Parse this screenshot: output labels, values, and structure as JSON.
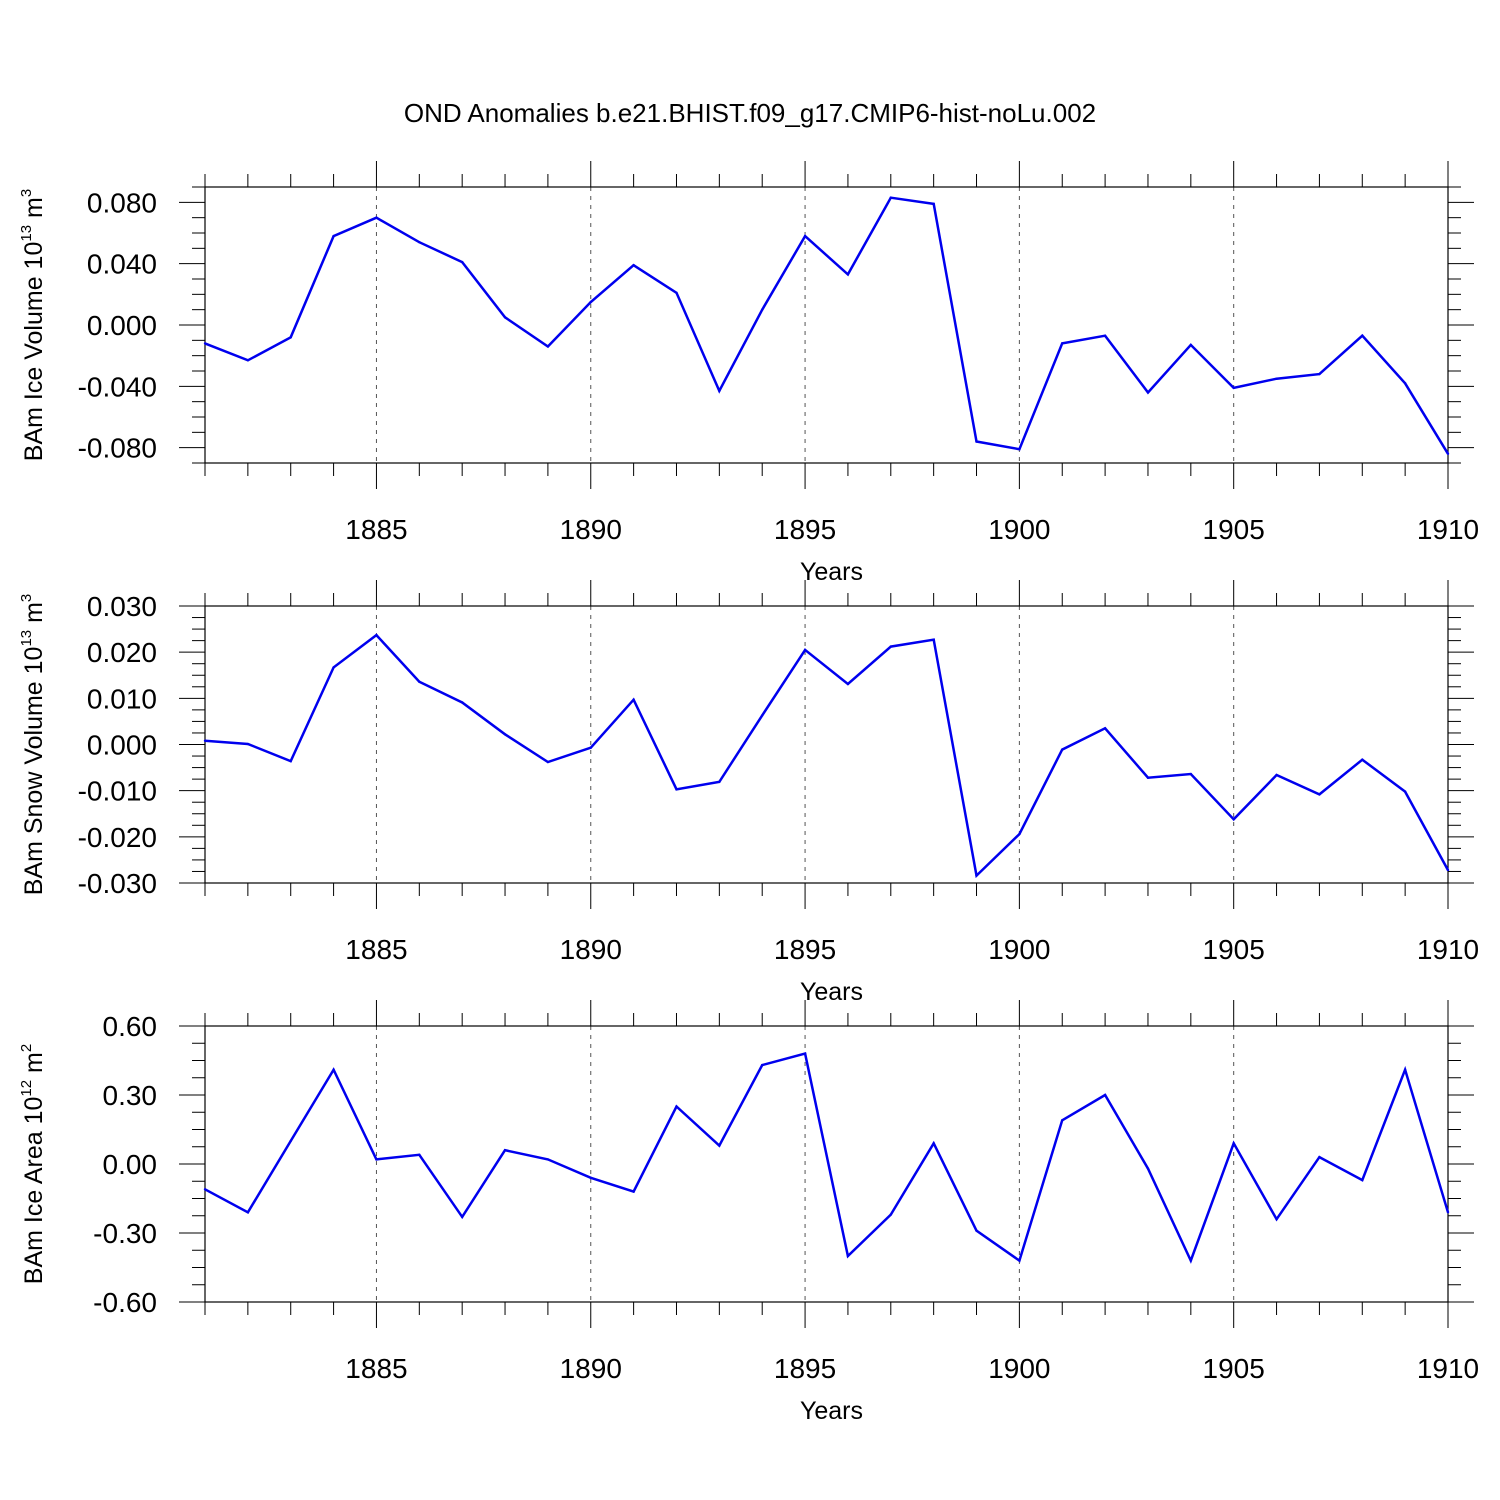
{
  "figure": {
    "title": "OND Anomalies b.e21.BHIST.f09_g17.CMIP6-hist-noLu.002"
  },
  "colors": {
    "line": "#0000ee",
    "axis": "#000000",
    "grid": "#555555"
  },
  "chart_data": [
    {
      "type": "line",
      "ylabel": "BAm Ice Volume 10",
      "ylabel_exp": "13",
      "ylabel_unit": "m",
      "ylabel_unit_exp": "3",
      "xlabel": "Years",
      "xlim": [
        1881,
        1910
      ],
      "ylim": [
        -0.09,
        0.09
      ],
      "yticks": [
        -0.08,
        -0.04,
        0.0,
        0.04,
        0.08
      ],
      "yticklabels": [
        "-0.080",
        "-0.040",
        "0.000",
        "0.040",
        "0.080"
      ],
      "yminor_step": 0.01,
      "xticks": [
        1885,
        1890,
        1895,
        1900,
        1905,
        1910
      ],
      "xticklabels": [
        "1885",
        "1890",
        "1895",
        "1900",
        "1905",
        "1910"
      ],
      "grid": "vertical-dashed-at-major-x",
      "x": [
        1881,
        1882,
        1883,
        1884,
        1885,
        1886,
        1887,
        1888,
        1889,
        1890,
        1891,
        1892,
        1893,
        1894,
        1895,
        1896,
        1897,
        1898,
        1899,
        1900,
        1901,
        1902,
        1903,
        1904,
        1905,
        1906,
        1907,
        1908,
        1909,
        1910
      ],
      "values": [
        -0.012,
        -0.023,
        -0.008,
        0.058,
        0.07,
        0.054,
        0.041,
        0.005,
        -0.014,
        0.015,
        0.039,
        0.021,
        -0.043,
        0.01,
        0.058,
        0.033,
        0.083,
        0.079,
        -0.076,
        -0.081,
        -0.012,
        -0.007,
        -0.044,
        -0.013,
        -0.041,
        -0.035,
        -0.032,
        -0.007,
        -0.038,
        -0.084
      ]
    },
    {
      "type": "line",
      "ylabel": "BAm Snow Volume 10",
      "ylabel_exp": "13",
      "ylabel_unit": "m",
      "ylabel_unit_exp": "3",
      "xlabel": "Years",
      "xlim": [
        1881,
        1910
      ],
      "ylim": [
        -0.03,
        0.03
      ],
      "yticks": [
        -0.03,
        -0.02,
        -0.01,
        0.0,
        0.01,
        0.02,
        0.03
      ],
      "yticklabels": [
        "-0.030",
        "-0.020",
        "-0.010",
        "0.000",
        "0.010",
        "0.020",
        "0.030"
      ],
      "yminor_step": 0.0025,
      "xticks": [
        1885,
        1890,
        1895,
        1900,
        1905,
        1910
      ],
      "xticklabels": [
        "1885",
        "1890",
        "1895",
        "1900",
        "1905",
        "1910"
      ],
      "grid": "vertical-dashed-at-major-x",
      "x": [
        1881,
        1882,
        1883,
        1884,
        1885,
        1886,
        1887,
        1888,
        1889,
        1890,
        1891,
        1892,
        1893,
        1894,
        1895,
        1896,
        1897,
        1898,
        1899,
        1900,
        1901,
        1902,
        1903,
        1904,
        1905,
        1906,
        1907,
        1908,
        1909,
        1910
      ],
      "values": [
        0.0008,
        0.0001,
        -0.0036,
        0.0167,
        0.0237,
        0.0136,
        0.0091,
        0.0022,
        -0.0038,
        -0.0007,
        0.0097,
        -0.0097,
        -0.0081,
        0.0063,
        0.0205,
        0.0131,
        0.0212,
        0.0227,
        -0.0284,
        -0.0194,
        -0.0011,
        0.0035,
        -0.0072,
        -0.0064,
        -0.0162,
        -0.0066,
        -0.0108,
        -0.0033,
        -0.0102,
        -0.0272
      ]
    },
    {
      "type": "line",
      "ylabel": "BAm Ice Area 10",
      "ylabel_exp": "12",
      "ylabel_unit": "m",
      "ylabel_unit_exp": "2",
      "xlabel": "Years",
      "xlim": [
        1881,
        1910
      ],
      "ylim": [
        -0.6,
        0.6
      ],
      "yticks": [
        -0.6,
        -0.3,
        0.0,
        0.3,
        0.6
      ],
      "yticklabels": [
        "-0.60",
        "-0.30",
        "0.00",
        "0.30",
        "0.60"
      ],
      "yminor_step": 0.075,
      "xticks": [
        1885,
        1890,
        1895,
        1900,
        1905,
        1910
      ],
      "xticklabels": [
        "1885",
        "1890",
        "1895",
        "1900",
        "1905",
        "1910"
      ],
      "grid": "vertical-dashed-at-major-x",
      "x": [
        1881,
        1882,
        1883,
        1884,
        1885,
        1886,
        1887,
        1888,
        1889,
        1890,
        1891,
        1892,
        1893,
        1894,
        1895,
        1896,
        1897,
        1898,
        1899,
        1900,
        1901,
        1902,
        1903,
        1904,
        1905,
        1906,
        1907,
        1908,
        1909,
        1910
      ],
      "values": [
        -0.11,
        -0.21,
        0.1,
        0.41,
        0.02,
        0.04,
        -0.23,
        0.06,
        0.02,
        -0.06,
        -0.12,
        0.25,
        0.08,
        0.43,
        0.48,
        -0.4,
        -0.22,
        0.09,
        -0.29,
        -0.42,
        0.19,
        0.3,
        -0.02,
        -0.42,
        0.09,
        -0.24,
        0.03,
        -0.07,
        0.41,
        -0.21
      ]
    }
  ]
}
